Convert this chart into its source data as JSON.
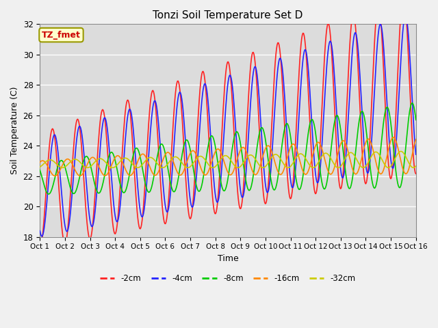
{
  "title": "Tonzi Soil Temperature Set D",
  "xlabel": "Time",
  "ylabel": "Soil Temperature (C)",
  "ylim": [
    18,
    32
  ],
  "xlim": [
    0,
    15
  ],
  "x_tick_labels": [
    "Oct 1",
    "Oct 2",
    "Oct 3",
    "Oct 4",
    "Oct 5",
    "Oct 6",
    "Oct 7",
    "Oct 8",
    "Oct 9",
    "Oct 10",
    "Oct 11",
    "Oct 12",
    "Oct 13",
    "Oct 14",
    "Oct 15",
    "Oct 16"
  ],
  "annotation_text": "TZ_fmet",
  "annotation_color": "#cc0000",
  "annotation_bg": "#ffffcc",
  "annotation_border": "#999900",
  "colors": {
    "-2cm": "#ff2222",
    "-4cm": "#2222ff",
    "-8cm": "#00cc00",
    "-16cm": "#ff8800",
    "-32cm": "#cccc00"
  },
  "background_color": "#dcdcdc",
  "plot_bg_light": "#e8e8e8",
  "grid_color": "#c8c8c8",
  "figsize": [
    6.4,
    4.8
  ],
  "dpi": 100
}
